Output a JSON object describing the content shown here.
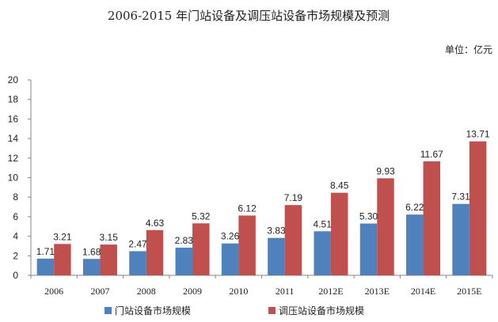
{
  "chart_data": {
    "type": "bar",
    "title": "2006-2015 年门站设备及调压站设备市场规模及预测",
    "unit": "单位：亿元",
    "categories": [
      "2006",
      "2007",
      "2008",
      "2009",
      "2010",
      "2011",
      "2012E",
      "2013E",
      "2014E",
      "2015E"
    ],
    "series": [
      {
        "name": "门站设备市场规模",
        "color": "#4F81BD",
        "values": [
          1.71,
          1.68,
          2.47,
          2.83,
          3.26,
          3.83,
          4.51,
          5.3,
          6.22,
          7.31
        ],
        "labels": [
          "1.71",
          "1.68",
          "2.47",
          "2.83",
          "3.26",
          "3.83",
          "4.51",
          "5.30",
          "6.22",
          "7.31"
        ]
      },
      {
        "name": "调压站设备市场规模",
        "color": "#C0504D",
        "values": [
          3.21,
          3.15,
          4.63,
          5.32,
          6.12,
          7.19,
          8.45,
          9.93,
          11.67,
          13.71
        ],
        "labels": [
          "3.21",
          "3.15",
          "4.63",
          "5.32",
          "6.12",
          "7.19",
          "8.45",
          "9.93",
          "11.67",
          "13.71"
        ]
      }
    ],
    "yticks": [
      "0",
      "2",
      "4",
      "6",
      "8",
      "10",
      "12",
      "14",
      "16",
      "18",
      "20"
    ],
    "ylim": [
      0,
      20
    ],
    "grid": false,
    "legend_position": "bottom"
  }
}
